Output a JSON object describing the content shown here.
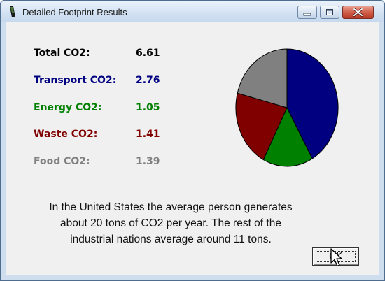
{
  "window": {
    "title": "Detailed Footprint Results"
  },
  "stats": {
    "total": {
      "label": "Total CO2:",
      "value": "6.61",
      "color": "#000000"
    },
    "transport": {
      "label": "Transport CO2:",
      "value": "2.76",
      "color": "#000080"
    },
    "energy": {
      "label": "Energy CO2:",
      "value": "1.05",
      "color": "#008000"
    },
    "waste": {
      "label": "Waste CO2:",
      "value": "1.41",
      "color": "#800000"
    },
    "food": {
      "label": "Food CO2:",
      "value": "1.39",
      "color": "#808080"
    }
  },
  "pie_slices": [
    {
      "name": "Transport",
      "value": 2.76,
      "color": "#000080"
    },
    {
      "name": "Energy",
      "value": 1.05,
      "color": "#008000"
    },
    {
      "name": "Waste",
      "value": 1.41,
      "color": "#800000"
    },
    {
      "name": "Food",
      "value": 1.39,
      "color": "#808080"
    }
  ],
  "message": {
    "line1": "In the United States the average person generates",
    "line2": "about 20 tons of CO2 per year. The rest of the",
    "line3": "industrial nations average around 11 tons."
  },
  "ok_button": {
    "label": "OK"
  },
  "icons": {
    "app": "app-icon",
    "minimize": "minimize-icon",
    "maximize": "maximize-icon",
    "close": "close-icon",
    "cursor": "mouse-cursor-icon"
  }
}
